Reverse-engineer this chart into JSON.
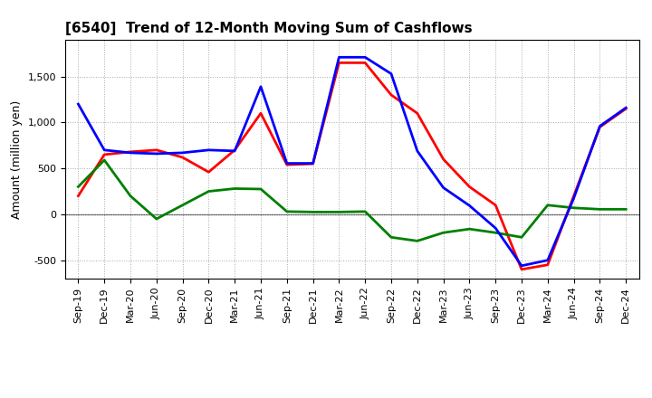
{
  "title": "[6540]  Trend of 12-Month Moving Sum of Cashflows",
  "ylabel": "Amount (million yen)",
  "x_labels": [
    "Sep-19",
    "Dec-19",
    "Mar-20",
    "Jun-20",
    "Sep-20",
    "Dec-20",
    "Mar-21",
    "Jun-21",
    "Sep-21",
    "Dec-21",
    "Mar-22",
    "Jun-22",
    "Sep-22",
    "Dec-22",
    "Mar-23",
    "Jun-23",
    "Sep-23",
    "Dec-23",
    "Mar-24",
    "Jun-24",
    "Sep-24",
    "Dec-24"
  ],
  "operating": [
    200,
    650,
    680,
    700,
    620,
    460,
    700,
    1100,
    540,
    550,
    1650,
    1650,
    1300,
    1100,
    600,
    300,
    100,
    -600,
    -550,
    200,
    950,
    1150
  ],
  "investing": [
    300,
    590,
    200,
    -50,
    100,
    250,
    280,
    275,
    30,
    25,
    25,
    30,
    -250,
    -290,
    -200,
    -160,
    -200,
    -250,
    100,
    70,
    55,
    55
  ],
  "free": [
    1200,
    700,
    670,
    660,
    670,
    700,
    690,
    1390,
    555,
    555,
    1710,
    1710,
    1530,
    690,
    290,
    95,
    -150,
    -560,
    -500,
    175,
    960,
    1160
  ],
  "ylim": [
    -700,
    1900
  ],
  "yticks": [
    -500,
    0,
    500,
    1000,
    1500
  ],
  "colors": {
    "operating": "#FF0000",
    "investing": "#008000",
    "free": "#0000FF"
  },
  "bg_color": "#FFFFFF",
  "grid_color": "#AAAAAA",
  "title_fontsize": 11,
  "ylabel_fontsize": 9,
  "tick_fontsize": 8,
  "legend_fontsize": 9,
  "linewidth": 2.0
}
